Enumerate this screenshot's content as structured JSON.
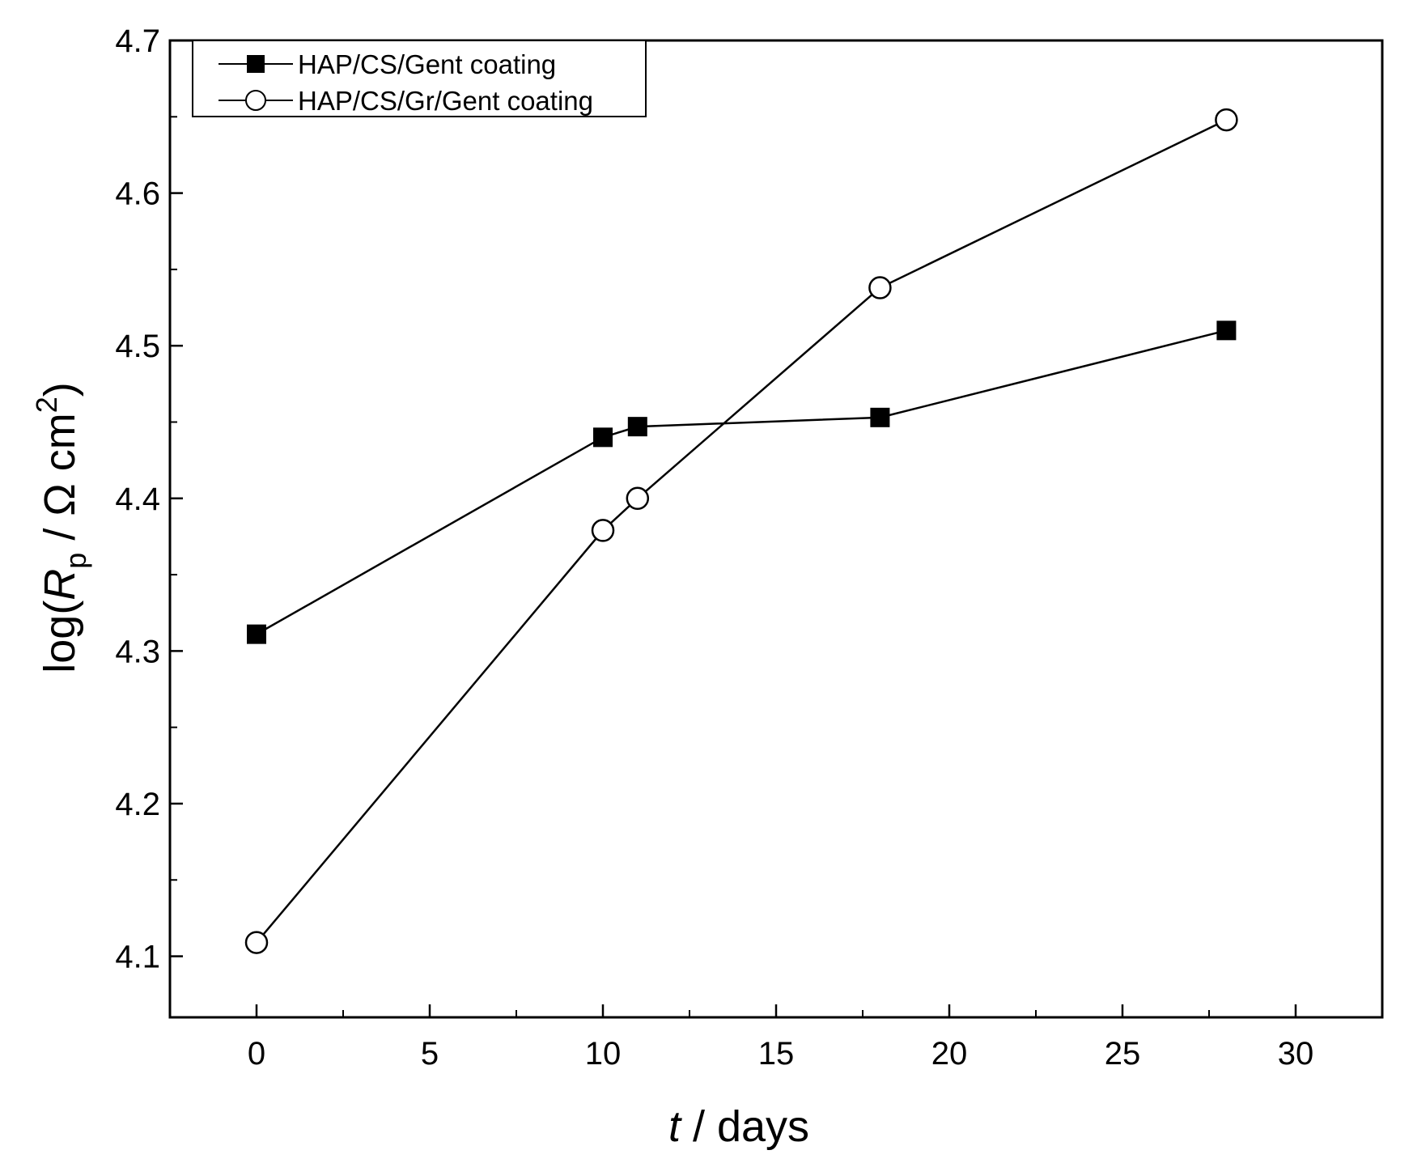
{
  "chart_data": {
    "type": "line",
    "title": "",
    "xlabel": {
      "italic": "t",
      "rest": " / days"
    },
    "ylabel": {
      "prefix": "log(",
      "var": "R",
      "sub": "p",
      "middle": " / Ω cm",
      "sup": "2",
      "suffix": ")"
    },
    "xlim": [
      -2.5,
      32.5
    ],
    "ylim": [
      4.06,
      4.7
    ],
    "x_major_ticks": [
      0,
      5,
      10,
      15,
      20,
      25,
      30
    ],
    "x_minor_ticks": [
      2.5,
      7.5,
      12.5,
      17.5,
      22.5,
      27.5
    ],
    "y_major_ticks": [
      4.1,
      4.2,
      4.3,
      4.4,
      4.5,
      4.6,
      4.7
    ],
    "y_minor_ticks": [
      4.15,
      4.25,
      4.35,
      4.45,
      4.55,
      4.65
    ],
    "x_tick_labels": [
      "0",
      "5",
      "10",
      "15",
      "20",
      "25",
      "30"
    ],
    "y_tick_labels": [
      "4.1",
      "4.2",
      "4.3",
      "4.4",
      "4.5",
      "4.6",
      "4.7"
    ],
    "grid": false,
    "legend_position": "top-left",
    "series": [
      {
        "name": "HAP/CS/Gent coating",
        "marker": "filled-square",
        "color": "#000000",
        "x": [
          0,
          10,
          11,
          18,
          28
        ],
        "y": [
          4.311,
          4.44,
          4.447,
          4.453,
          4.51
        ]
      },
      {
        "name": "HAP/CS/Gr/Gent coating",
        "marker": "open-circle",
        "color": "#000000",
        "x": [
          0,
          10,
          11,
          18,
          28
        ],
        "y": [
          4.109,
          4.379,
          4.4,
          4.538,
          4.648
        ]
      }
    ]
  }
}
